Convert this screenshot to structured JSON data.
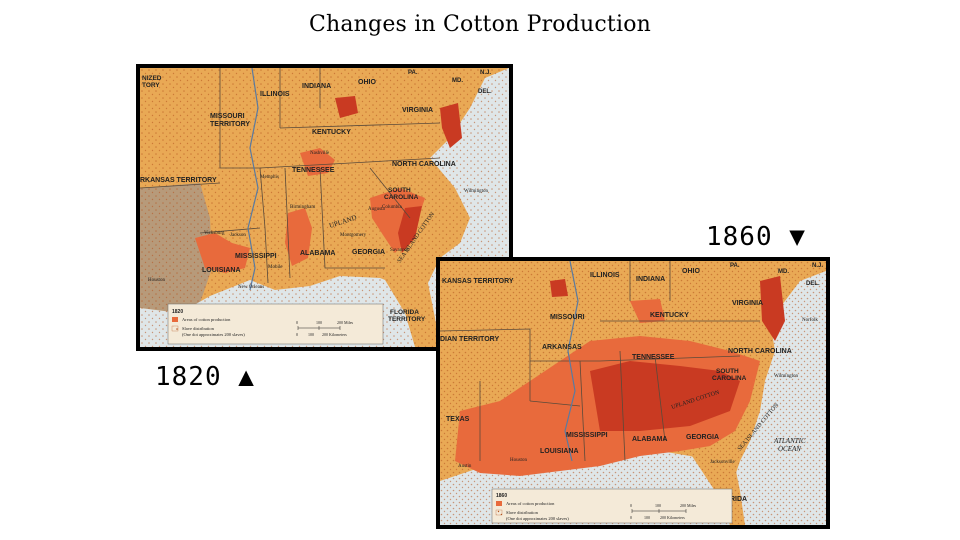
{
  "title": "Changes in Cotton Production",
  "captions": {
    "map1820": "1820 ▲",
    "map1860": "1860 ▼"
  },
  "colors": {
    "land": "#e9a955",
    "cotton": "#e86a3c",
    "cotton_dark": "#c93a22",
    "water": "#dfe6e8",
    "other_land": "#b79a7a",
    "dots": "#b5531f"
  },
  "map1820": {
    "year": "1820",
    "labels": {
      "unorganized": "NIZED\nTORY",
      "indiana": "INDIANA",
      "ohio": "OHIO",
      "illinois": "ILLINOIS",
      "pa": "PA.",
      "nj": "N.J.",
      "md": "MD.",
      "del": "DEL.",
      "missouri_territory": "MISSOURI\nTERRITORY",
      "virginia": "VIRGINIA",
      "kentucky": "KENTUCKY",
      "nashville": "Nashville",
      "tennessee": "TENNESSEE",
      "north_carolina": "NORTH CAROLINA",
      "memphis": "Memphis",
      "arkansas_territory": "RKANSAS TERRITORY",
      "south_carolina": "SOUTH\nCAROLINA",
      "wilmington": "Wilmington",
      "columbia": "Columbia",
      "birmingham": "Birmingham",
      "augusta": "Augusta",
      "sea_island": "SEA ISLAND COTTON",
      "upland": "UPLAND",
      "montgomery": "Montgomery",
      "vicksburg": "Vicksburg",
      "jackson": "Jackson",
      "savannah": "Savannah",
      "georgia": "GEORGIA",
      "alabama": "ALABAMA",
      "mississippi": "MISSISSIPPI",
      "louisiana": "LOUISIANA",
      "houston": "Houston",
      "mobile": "Mobile",
      "new_orleans": "New Orleans",
      "florida_territory": "FLORIDA\nTERRITORY"
    },
    "legend": {
      "year": "1820",
      "cotton": "Areas of cotton production",
      "slave_line1": "Slave distribution",
      "slave_line2": "(One dot approximates 200 slaves)",
      "scale_ticks": [
        "0",
        "100",
        "200 Miles"
      ],
      "scale_ticks_km": [
        "0",
        "100",
        "200 Kilometers"
      ]
    }
  },
  "map1860": {
    "year": "1860",
    "labels": {
      "kansas_territory": "KANSAS TERRITORY",
      "illinois": "ILLINOIS",
      "indiana": "INDIANA",
      "ohio": "OHIO",
      "pa": "PA.",
      "nj": "N.J.",
      "md": "MD.",
      "del": "DEL.",
      "missouri": "MISSOURI",
      "virginia": "VIRGINIA",
      "kentucky": "KENTUCKY",
      "norfolk": "Norfolk",
      "indian_territory": "DIAN TERRITORY",
      "arkansas": "ARKANSAS",
      "tennessee": "TENNESSEE",
      "north_carolina": "NORTH CAROLINA",
      "south_carolina": "SOUTH\nCAROLINA",
      "wilmington": "Wilmington",
      "texas": "TEXAS",
      "mississippi": "MISSISSIPPI",
      "alabama": "ALABAMA",
      "georgia": "GEORGIA",
      "louisiana": "LOUISIANA",
      "austin": "Austin",
      "houston": "Houston",
      "jacksonville": "Jacksonville",
      "atlantic": "ATLANTIC\nOCEAN",
      "florida": "FLORIDA",
      "sea_island": "SEA ISLAND COTTON",
      "upland": "UPLAND COTTON"
    },
    "legend": {
      "year": "1860",
      "cotton": "Areas of cotton production",
      "slave_line1": "Slave distribution",
      "slave_line2": "(One dot approximates 200 slaves)",
      "scale_ticks": [
        "0",
        "100",
        "200 Miles"
      ],
      "scale_ticks_km": [
        "0",
        "100",
        "200 Kilometers"
      ]
    }
  }
}
